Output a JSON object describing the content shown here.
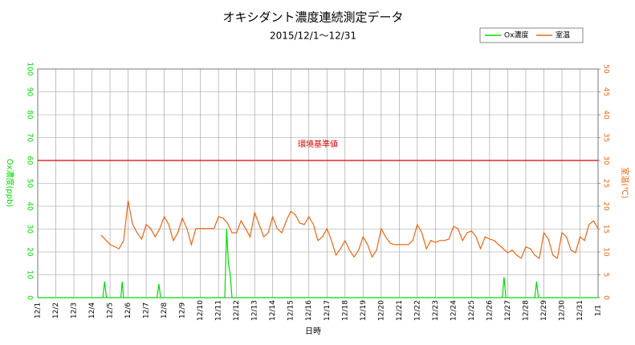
{
  "chart_data": {
    "type": "line",
    "title": "オキシダント濃度連続測定データ",
    "subtitle": "2015/12/1～12/31",
    "x_label": "日時",
    "y_label": "Ox濃度(ppb)",
    "y2_label": "室温(℃)",
    "xlim": [
      0,
      31
    ],
    "xticks": [
      {
        "value": 0,
        "label": "12/1"
      },
      {
        "value": 1,
        "label": "12/2"
      },
      {
        "value": 2,
        "label": "12/3"
      },
      {
        "value": 3,
        "label": "12/4"
      },
      {
        "value": 4,
        "label": "12/5"
      },
      {
        "value": 5,
        "label": "12/6"
      },
      {
        "value": 6,
        "label": "12/7"
      },
      {
        "value": 7,
        "label": "12/8"
      },
      {
        "value": 8,
        "label": "12/9"
      },
      {
        "value": 9,
        "label": "12/10"
      },
      {
        "value": 10,
        "label": "12/11"
      },
      {
        "value": 11,
        "label": "12/12"
      },
      {
        "value": 12,
        "label": "12/13"
      },
      {
        "value": 13,
        "label": "12/14"
      },
      {
        "value": 14,
        "label": "12/15"
      },
      {
        "value": 15,
        "label": "12/16"
      },
      {
        "value": 16,
        "label": "12/17"
      },
      {
        "value": 17,
        "label": "12/18"
      },
      {
        "value": 18,
        "label": "12/19"
      },
      {
        "value": 19,
        "label": "12/20"
      },
      {
        "value": 20,
        "label": "12/21"
      },
      {
        "value": 21,
        "label": "12/22"
      },
      {
        "value": 22,
        "label": "12/23"
      },
      {
        "value": 23,
        "label": "12/24"
      },
      {
        "value": 24,
        "label": "12/25"
      },
      {
        "value": 25,
        "label": "12/26"
      },
      {
        "value": 26,
        "label": "12/27"
      },
      {
        "value": 27,
        "label": "12/28"
      },
      {
        "value": 28,
        "label": "12/29"
      },
      {
        "value": 29,
        "label": "12/30"
      },
      {
        "value": 30,
        "label": "12/31"
      },
      {
        "value": 31,
        "label": "1/1"
      }
    ],
    "ylim": [
      0,
      100
    ],
    "yticks": [
      0,
      10,
      20,
      30,
      40,
      50,
      60,
      70,
      80,
      90,
      100
    ],
    "y2lim": [
      0,
      50
    ],
    "y2ticks": [
      0,
      5,
      10,
      15,
      20,
      25,
      30,
      35,
      40,
      45,
      50
    ],
    "grid": true,
    "legend": "top-right",
    "reference_lines": [
      {
        "value": 60,
        "label": "環境基準値",
        "color": "#e00000"
      }
    ],
    "series": [
      {
        "name": "Ox濃度",
        "color": "#00dd00",
        "x": [
          0,
          3.6,
          3.7,
          3.8,
          4.6,
          4.67,
          4.75,
          6.6,
          6.7,
          6.8,
          10.35,
          10.45,
          10.55,
          10.65,
          10.75,
          25.7,
          25.8,
          25.9,
          27.5,
          27.6,
          27.7,
          31
        ],
        "values": [
          0,
          0,
          7,
          0,
          0,
          7,
          0,
          0,
          6,
          0,
          0,
          30,
          15,
          10,
          0,
          0,
          9,
          0,
          0,
          7,
          0,
          0
        ]
      },
      {
        "name": "室温",
        "color": "#ee6611",
        "axis": "y2",
        "x": [
          3.5,
          4,
          4.5,
          4.75,
          5,
          5.25,
          5.5,
          5.75,
          6,
          6.25,
          6.5,
          6.75,
          7,
          7.25,
          7.5,
          7.75,
          8,
          8.25,
          8.5,
          8.75,
          9,
          9.25,
          9.5,
          9.75,
          10,
          10.25,
          10.5,
          10.75,
          11,
          11.25,
          11.5,
          11.75,
          12,
          12.25,
          12.5,
          12.75,
          13,
          13.25,
          13.5,
          13.75,
          14,
          14.25,
          14.5,
          14.75,
          15,
          15.25,
          15.5,
          15.75,
          16,
          16.25,
          16.5,
          16.75,
          17,
          17.25,
          17.5,
          17.75,
          18,
          18.25,
          18.5,
          18.75,
          19,
          19.25,
          19.5,
          19.75,
          20,
          20.25,
          20.5,
          20.75,
          21,
          21.25,
          21.5,
          21.75,
          22,
          22.25,
          22.5,
          22.75,
          23,
          23.25,
          23.5,
          23.75,
          24,
          24.25,
          24.5,
          24.75,
          25,
          25.25,
          25.5,
          25.75,
          26,
          26.25,
          26.5,
          26.75,
          27,
          27.25,
          27.5,
          27.75,
          28,
          28.25,
          28.5,
          28.75,
          29,
          29.25,
          29.5,
          29.75,
          30,
          30.25,
          30.5,
          30.75,
          31
        ],
        "values": [
          13.7,
          11.6,
          10.7,
          12.5,
          21.2,
          16.0,
          14.2,
          12.8,
          16.0,
          15.1,
          13.3,
          15.1,
          17.7,
          16.0,
          12.5,
          14.2,
          17.4,
          15.1,
          11.6,
          15.1,
          15.1,
          15.1,
          15.1,
          15.1,
          17.7,
          17.4,
          16.3,
          14.2,
          14.2,
          16.8,
          15.1,
          13.3,
          18.6,
          16.0,
          13.3,
          14.2,
          17.7,
          15.1,
          14.2,
          16.8,
          18.9,
          18.1,
          16.3,
          16.0,
          17.7,
          16.0,
          12.5,
          13.3,
          15.1,
          12.5,
          9.3,
          10.7,
          12.5,
          10.4,
          8.9,
          10.4,
          13.3,
          11.6,
          8.9,
          10.4,
          15.1,
          13.3,
          11.9,
          11.6,
          11.6,
          11.6,
          11.6,
          12.5,
          16.0,
          14.2,
          10.7,
          12.5,
          12.1,
          12.5,
          12.5,
          12.8,
          15.6,
          15.1,
          12.5,
          14.2,
          14.6,
          13.3,
          10.7,
          13.3,
          12.8,
          12.5,
          11.6,
          10.7,
          9.8,
          10.4,
          9.3,
          8.6,
          11.1,
          10.7,
          9.3,
          8.6,
          14.2,
          12.8,
          9.3,
          8.6,
          14.2,
          13.3,
          10.4,
          9.8,
          13.3,
          12.5,
          16.0,
          16.8,
          15.1
        ]
      }
    ]
  }
}
